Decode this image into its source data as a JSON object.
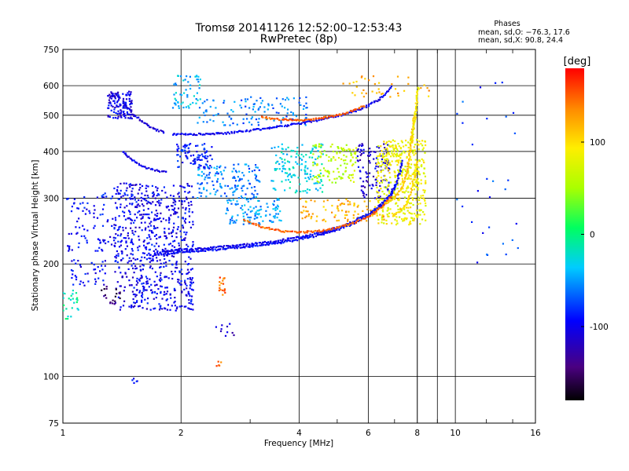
{
  "chart_data": {
    "type": "scatter",
    "title": "Tromsø 20141126 12:52:00–12:53:43",
    "subtitle": "RwPretec (8p)",
    "xlabel": "Frequency [MHz]",
    "ylabel": "Stationary phase Virtual Height [km]",
    "x_scale": "log",
    "y_scale": "log",
    "xlim": [
      1,
      16
    ],
    "ylim": [
      75,
      750
    ],
    "x_ticks": [
      1,
      2,
      4,
      6,
      8,
      10,
      16
    ],
    "x_tick_labels": [
      "1",
      "2",
      "4",
      "6",
      "8",
      "10",
      "16"
    ],
    "y_ticks": [
      75,
      100,
      200,
      300,
      400,
      500,
      600,
      750
    ],
    "y_tick_labels": [
      "75",
      "100",
      "200",
      "300",
      "400",
      "500",
      "600",
      "750"
    ],
    "grid": true,
    "phases_box": {
      "title": "Phases",
      "line_o": "mean, sd,O: −76.3, 17.6",
      "line_x": "mean, sd,X:  90.8, 24.4"
    },
    "colorbar": {
      "label": "[deg]",
      "range": [
        -180,
        180
      ],
      "ticks": [
        100,
        0,
        -100
      ],
      "tick_labels": [
        "100",
        "0",
        "-100"
      ]
    },
    "series": [
      {
        "traces": [
          {
            "x": [
              1.72,
              1.8,
              2.0,
              2.4,
              3.0,
              3.5,
              4.0,
              4.5,
              5.0,
              5.5,
              6.0,
              6.4,
              6.8,
              7.1,
              7.35
            ],
            "y": [
              215,
              216,
              218,
              221,
              226,
              230,
              236,
              242,
              250,
              260,
              272,
              286,
              305,
              330,
              380
            ],
            "phase": -100
          },
          {
            "x": [
              1.72,
              1.8,
              2.0,
              2.4,
              3.0,
              3.5,
              4.0,
              4.5,
              5.0,
              5.5,
              6.0,
              6.4,
              6.8,
              7.1
            ],
            "y": [
              212,
              213,
              215,
              218,
              223,
              227,
              233,
              239,
              247,
              257,
              269,
              283,
              302,
              330
            ],
            "phase": -95
          },
          {
            "x": [
              2.9,
              3.2,
              3.6,
              4.0,
              4.5,
              5.0,
              5.5,
              6.0,
              6.5,
              6.9
            ],
            "y": [
              262,
              252,
              245,
              243,
              245,
              250,
              258,
              268,
              284,
              305
            ],
            "phase": 150
          },
          {
            "x": [
              1.9,
              2.2,
              2.6,
              3.0,
              3.5,
              4.0,
              4.5,
              5.0,
              5.5,
              6.0,
              6.5,
              6.9
            ],
            "y": [
              445,
              445,
              448,
              455,
              465,
              475,
              485,
              498,
              512,
              530,
              558,
              600
            ],
            "phase": -100
          },
          {
            "x": [
              3.2,
              3.5,
              4.0,
              4.5,
              5.0,
              5.5,
              5.9
            ],
            "y": [
              495,
              488,
              485,
              490,
              500,
              515,
              532
            ],
            "phase": 150
          },
          {
            "x": [
              1.42,
              1.5,
              1.6,
              1.7,
              1.82
            ],
            "y": [
              545,
              505,
              480,
              460,
              450
            ],
            "phase": -110
          },
          {
            "x": [
              1.42,
              1.5,
              1.6,
              1.72,
              1.85
            ],
            "y": [
              400,
              380,
              365,
              356,
              352
            ],
            "phase": -100
          },
          {
            "x": [
              6.6,
              7.0,
              7.3,
              7.5,
              7.65,
              7.75,
              7.85
            ],
            "y": [
              290,
              300,
              320,
              350,
              390,
              440,
              500
            ],
            "phase": 110
          },
          {
            "x": [
              7.7,
              7.85,
              7.95,
              8.05
            ],
            "y": [
              420,
              470,
              530,
              600
            ],
            "phase": 90
          },
          {
            "x": [
              6.9,
              7.2,
              7.5,
              7.7,
              7.85,
              8.0
            ],
            "y": [
              270,
              275,
              290,
              310,
              340,
              380
            ],
            "phase": 100
          }
        ]
      },
      {
        "clouds": [
          {
            "x": [
              1.35,
              2.15
            ],
            "y": [
              150,
              330
            ],
            "n": 650,
            "phase": -100
          },
          {
            "x": [
              1.02,
              1.7
            ],
            "y": [
              215,
              310
            ],
            "n": 160,
            "phase": -95
          },
          {
            "x": [
              1.3,
              1.5
            ],
            "y": [
              490,
              580
            ],
            "n": 120,
            "phase": -105
          },
          {
            "x": [
              1.95,
              2.4
            ],
            "y": [
              360,
              420
            ],
            "n": 90,
            "phase": -90
          },
          {
            "x": [
              1.9,
              2.25
            ],
            "y": [
              520,
              640
            ],
            "n": 55,
            "phase": -40
          },
          {
            "x": [
              2.2,
              3.2
            ],
            "y": [
              300,
              370
            ],
            "n": 140,
            "phase": -60
          },
          {
            "x": [
              2.6,
              3.6
            ],
            "y": [
              255,
              300
            ],
            "n": 110,
            "phase": -50
          },
          {
            "x": [
              3.4,
              4.6
            ],
            "y": [
              310,
              420
            ],
            "n": 140,
            "phase": -30
          },
          {
            "x": [
              2.2,
              4.2
            ],
            "y": [
              470,
              560
            ],
            "n": 120,
            "phase": -60
          },
          {
            "x": [
              4.3,
              5.6
            ],
            "y": [
              330,
              420
            ],
            "n": 120,
            "phase": 60
          },
          {
            "x": [
              5.6,
              6.8
            ],
            "y": [
              300,
              420
            ],
            "n": 110,
            "phase": -110
          },
          {
            "x": [
              6.3,
              8.4
            ],
            "y": [
              255,
              430
            ],
            "n": 420,
            "phase": 85
          },
          {
            "x": [
              4.0,
              6.6
            ],
            "y": [
              260,
              300
            ],
            "n": 90,
            "phase": 120
          },
          {
            "x": [
              1.0,
              1.1
            ],
            "y": [
              140,
              170
            ],
            "n": 25,
            "phase": -10
          },
          {
            "x": [
              1.05,
              1.3
            ],
            "y": [
              175,
              205
            ],
            "n": 40,
            "phase": -100
          },
          {
            "x": [
              1.25,
              1.4
            ],
            "y": [
              155,
              175
            ],
            "n": 20,
            "phase": -150
          },
          {
            "x": [
              2.5,
              2.6
            ],
            "y": [
              165,
              185
            ],
            "n": 18,
            "phase": 150
          },
          {
            "x": [
              2.45,
              2.75
            ],
            "y": [
              125,
              140
            ],
            "n": 10,
            "phase": -110
          },
          {
            "x": [
              2.45,
              2.55
            ],
            "y": [
              106,
              110
            ],
            "n": 5,
            "phase": 140
          },
          {
            "x": [
              1.5,
              1.55
            ],
            "y": [
              95,
              99
            ],
            "n": 5,
            "phase": -100
          },
          {
            "x": [
              5.0,
              8.6
            ],
            "y": [
              560,
              640
            ],
            "n": 40,
            "phase": 120
          },
          {
            "x": [
              10.0,
              14.5
            ],
            "y": [
              200,
              640
            ],
            "n": 30,
            "phase": -80
          }
        ]
      }
    ]
  }
}
